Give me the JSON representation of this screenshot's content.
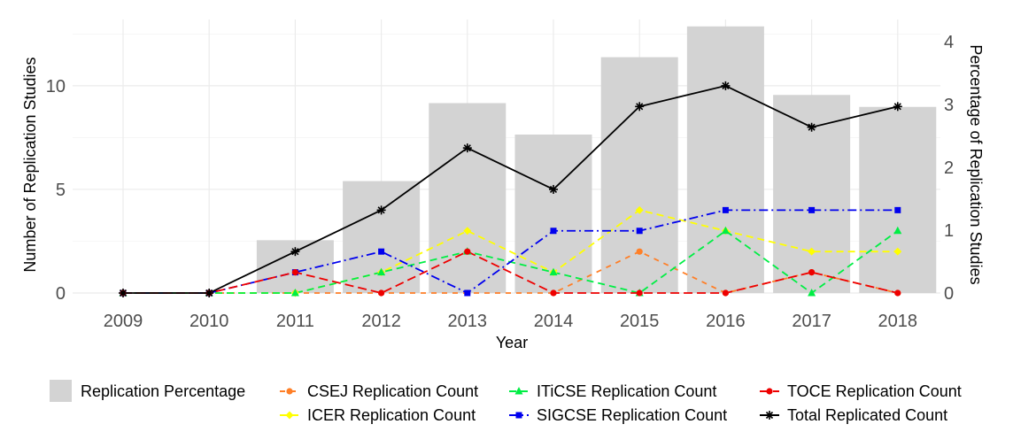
{
  "chart_data": {
    "type": "bar+line",
    "categories": [
      "2009",
      "2010",
      "2011",
      "2012",
      "2013",
      "2014",
      "2015",
      "2016",
      "2017",
      "2018"
    ],
    "x_label": "Year",
    "y_left_label": "Number of Replication Studies",
    "y_right_label": "Percentage of Replication Studies",
    "y_left_ticks": [
      0,
      5,
      10
    ],
    "y_left_range": [
      0,
      13.2
    ],
    "y_right_ticks": [
      0,
      1,
      2,
      3,
      4
    ],
    "y_right_range": [
      0,
      4.35
    ],
    "bars": {
      "name": "Replication Percentage",
      "color": "#d3d3d3",
      "values": [
        0,
        0,
        0.84,
        1.78,
        3.02,
        2.52,
        3.75,
        4.24,
        3.15,
        2.96
      ]
    },
    "series": [
      {
        "name": "CSEJ Replication Count",
        "color": "#ff7f27",
        "dash": "6,6",
        "marker": "circle",
        "values": [
          0,
          0,
          0,
          0,
          0,
          0,
          2,
          0,
          1,
          0
        ]
      },
      {
        "name": "ICER Replication Count",
        "color": "#ffff00",
        "dash": "8,5",
        "marker": "diamond",
        "values": [
          0,
          0,
          0,
          1,
          3,
          1,
          4,
          3,
          2,
          2
        ]
      },
      {
        "name": "ITiCSE Replication Count",
        "color": "#00ee44",
        "dash": "8,5",
        "marker": "triangle",
        "values": [
          0,
          0,
          0,
          1,
          2,
          1,
          0,
          3,
          0,
          3
        ]
      },
      {
        "name": "SIGCSE Replication Count",
        "color": "#0000ee",
        "dash": "10,4,2,4",
        "marker": "square",
        "values": [
          0,
          0,
          1,
          2,
          0,
          3,
          3,
          4,
          4,
          4
        ]
      },
      {
        "name": "TOCE Replication Count",
        "color": "#ee0000",
        "dash": "10,5",
        "marker": "circle",
        "values": [
          0,
          0,
          1,
          0,
          2,
          0,
          0,
          0,
          1,
          0
        ]
      },
      {
        "name": "Total Replicated Count",
        "color": "#000000",
        "dash": "",
        "marker": "star",
        "values": [
          0,
          0,
          2,
          4,
          7,
          5,
          9,
          10,
          8,
          9
        ]
      }
    ],
    "legend_position": "bottom",
    "grid": true
  }
}
